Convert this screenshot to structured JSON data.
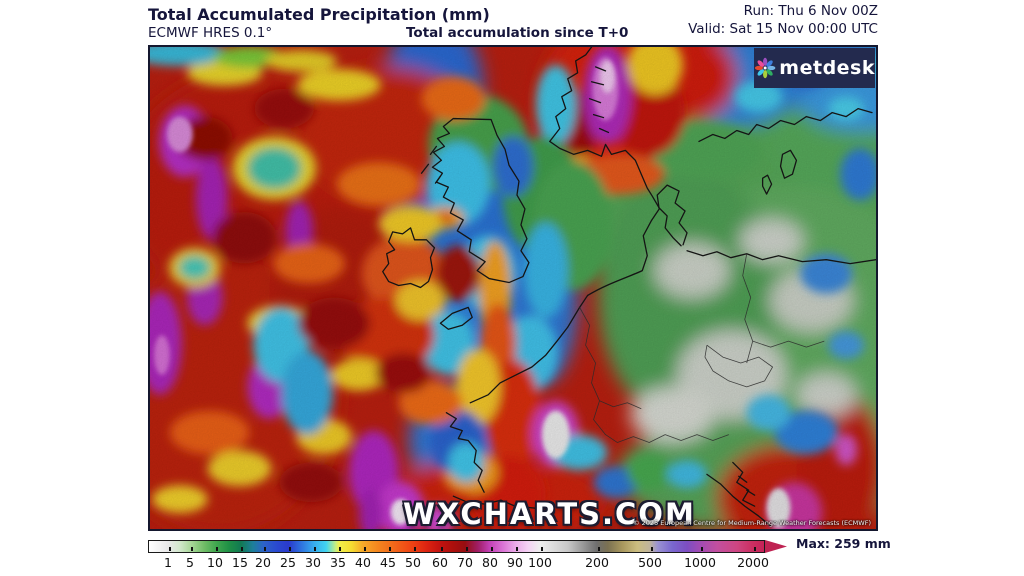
{
  "header": {
    "title": "Total Accumulated Precipitation (mm)",
    "model": "ECMWF HRES 0.1°",
    "accumulation_note": "Total accumulation since T+0",
    "run_label": "Run: Thu 6 Nov 00Z",
    "valid_label": "Valid: Sat 15 Nov 00:00 UTC"
  },
  "map": {
    "watermark": "WXCHARTS.COM",
    "attribution": "© 2025 European Centre for Medium-Range Weather Forecasts (ECMWF)",
    "provider_logo_text": "metdesk"
  },
  "legend": {
    "unit": "mm",
    "ticks": [
      "1",
      "5",
      "10",
      "15",
      "20",
      "25",
      "30",
      "35",
      "40",
      "45",
      "50",
      "60",
      "70",
      "80",
      "90",
      "100",
      "200",
      "500",
      "1000",
      "2000"
    ],
    "max_label": "Max: 259 mm"
  },
  "colors": {
    "header_text": "#15153b",
    "logo_background": "#232a4e",
    "arrow": "#bf2352",
    "map_border": "#14172e"
  }
}
